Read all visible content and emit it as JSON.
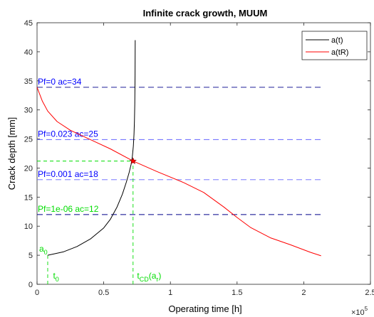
{
  "chart_data": {
    "type": "line",
    "title": "Infinite crack growth, MUUM",
    "xlabel": "Operating time [h]",
    "ylabel": "Crack depth [mm]",
    "x_multiplier_label": "×10",
    "x_multiplier_exp": "5",
    "xlim": [
      0,
      2.5
    ],
    "ylim": [
      0,
      45
    ],
    "x_ticks": [
      0,
      0.5,
      1,
      1.5,
      2,
      2.5
    ],
    "x_tick_labels": [
      "0",
      "0.5",
      "1",
      "1.5",
      "2",
      "2.5"
    ],
    "y_ticks": [
      0,
      5,
      10,
      15,
      20,
      25,
      30,
      35,
      40,
      45
    ],
    "y_tick_labels": [
      "0",
      "5",
      "10",
      "15",
      "20",
      "25",
      "30",
      "35",
      "40",
      "45"
    ],
    "grid": false,
    "legend_position": "top-right",
    "series": [
      {
        "name": "a(t)",
        "color": "#000000",
        "x": [
          0.08,
          0.2,
          0.3,
          0.4,
          0.5,
          0.55,
          0.6,
          0.64,
          0.67,
          0.69,
          0.705,
          0.715,
          0.722,
          0.727,
          0.73,
          0.733,
          0.735,
          0.736
        ],
        "y": [
          5.0,
          5.6,
          6.5,
          7.8,
          9.7,
          11.2,
          13.3,
          15.5,
          17.6,
          19.2,
          20.6,
          22.0,
          23.8,
          25.8,
          28.0,
          31.0,
          36.0,
          42.0
        ]
      },
      {
        "name": "a(tR)",
        "color": "#ff0000",
        "x": [
          0,
          0.04,
          0.08,
          0.15,
          0.25,
          0.4,
          0.55,
          0.72,
          0.9,
          1.1,
          1.25,
          1.4,
          1.5,
          1.6,
          1.75,
          1.9,
          2.05,
          2.13
        ],
        "y": [
          33.9,
          31.5,
          29.8,
          28.0,
          26.5,
          24.9,
          23.3,
          21.2,
          19.4,
          17.5,
          15.8,
          13.3,
          11.5,
          9.8,
          8.0,
          6.8,
          5.5,
          4.9
        ]
      }
    ],
    "hlines": [
      {
        "y": 33.9,
        "x_range": [
          0,
          2.13
        ],
        "color": "#00008b",
        "label": "Pf=0 ac=34",
        "label_color": "#0000ff"
      },
      {
        "y": 24.9,
        "x_range": [
          0,
          2.13
        ],
        "color": "#6666ff",
        "label": "Pf=0.023 ac=25",
        "label_color": "#0000ff"
      },
      {
        "y": 18.0,
        "x_range": [
          0,
          2.13
        ],
        "color": "#6666ff",
        "label": "Pf=0.001 ac=18",
        "label_color": "#0000ff"
      },
      {
        "y": 12.0,
        "x_range": [
          0,
          2.13
        ],
        "color": "#00008b",
        "label": "Pf=1e-06 ac=12",
        "label_color": "#00dd00"
      }
    ],
    "intersection": {
      "x": 0.72,
      "y": 21.2
    },
    "guides": [
      {
        "x": [
          0,
          0.72
        ],
        "y": [
          21.2,
          21.2
        ],
        "color": "#00dd00"
      },
      {
        "x": [
          0.72,
          0.72
        ],
        "y": [
          0,
          21.2
        ],
        "color": "#00dd00"
      },
      {
        "x": [
          0.08,
          0.08
        ],
        "y": [
          0,
          5.0
        ],
        "color": "#00dd00"
      }
    ],
    "annotations": [
      {
        "key": "a0",
        "text": "a",
        "sub": "0",
        "x": 0.08,
        "y": 5.6,
        "color": "#00dd00"
      },
      {
        "key": "t0",
        "text": "t",
        "sub": "0",
        "x": 0.12,
        "y": 1.0,
        "color": "#00dd00"
      },
      {
        "key": "tcd",
        "text": "t",
        "sub": "CD",
        "text2": "(a",
        "sub2": "r",
        "text3": ")",
        "x": 0.75,
        "y": 1.0,
        "color": "#00dd00"
      }
    ]
  }
}
